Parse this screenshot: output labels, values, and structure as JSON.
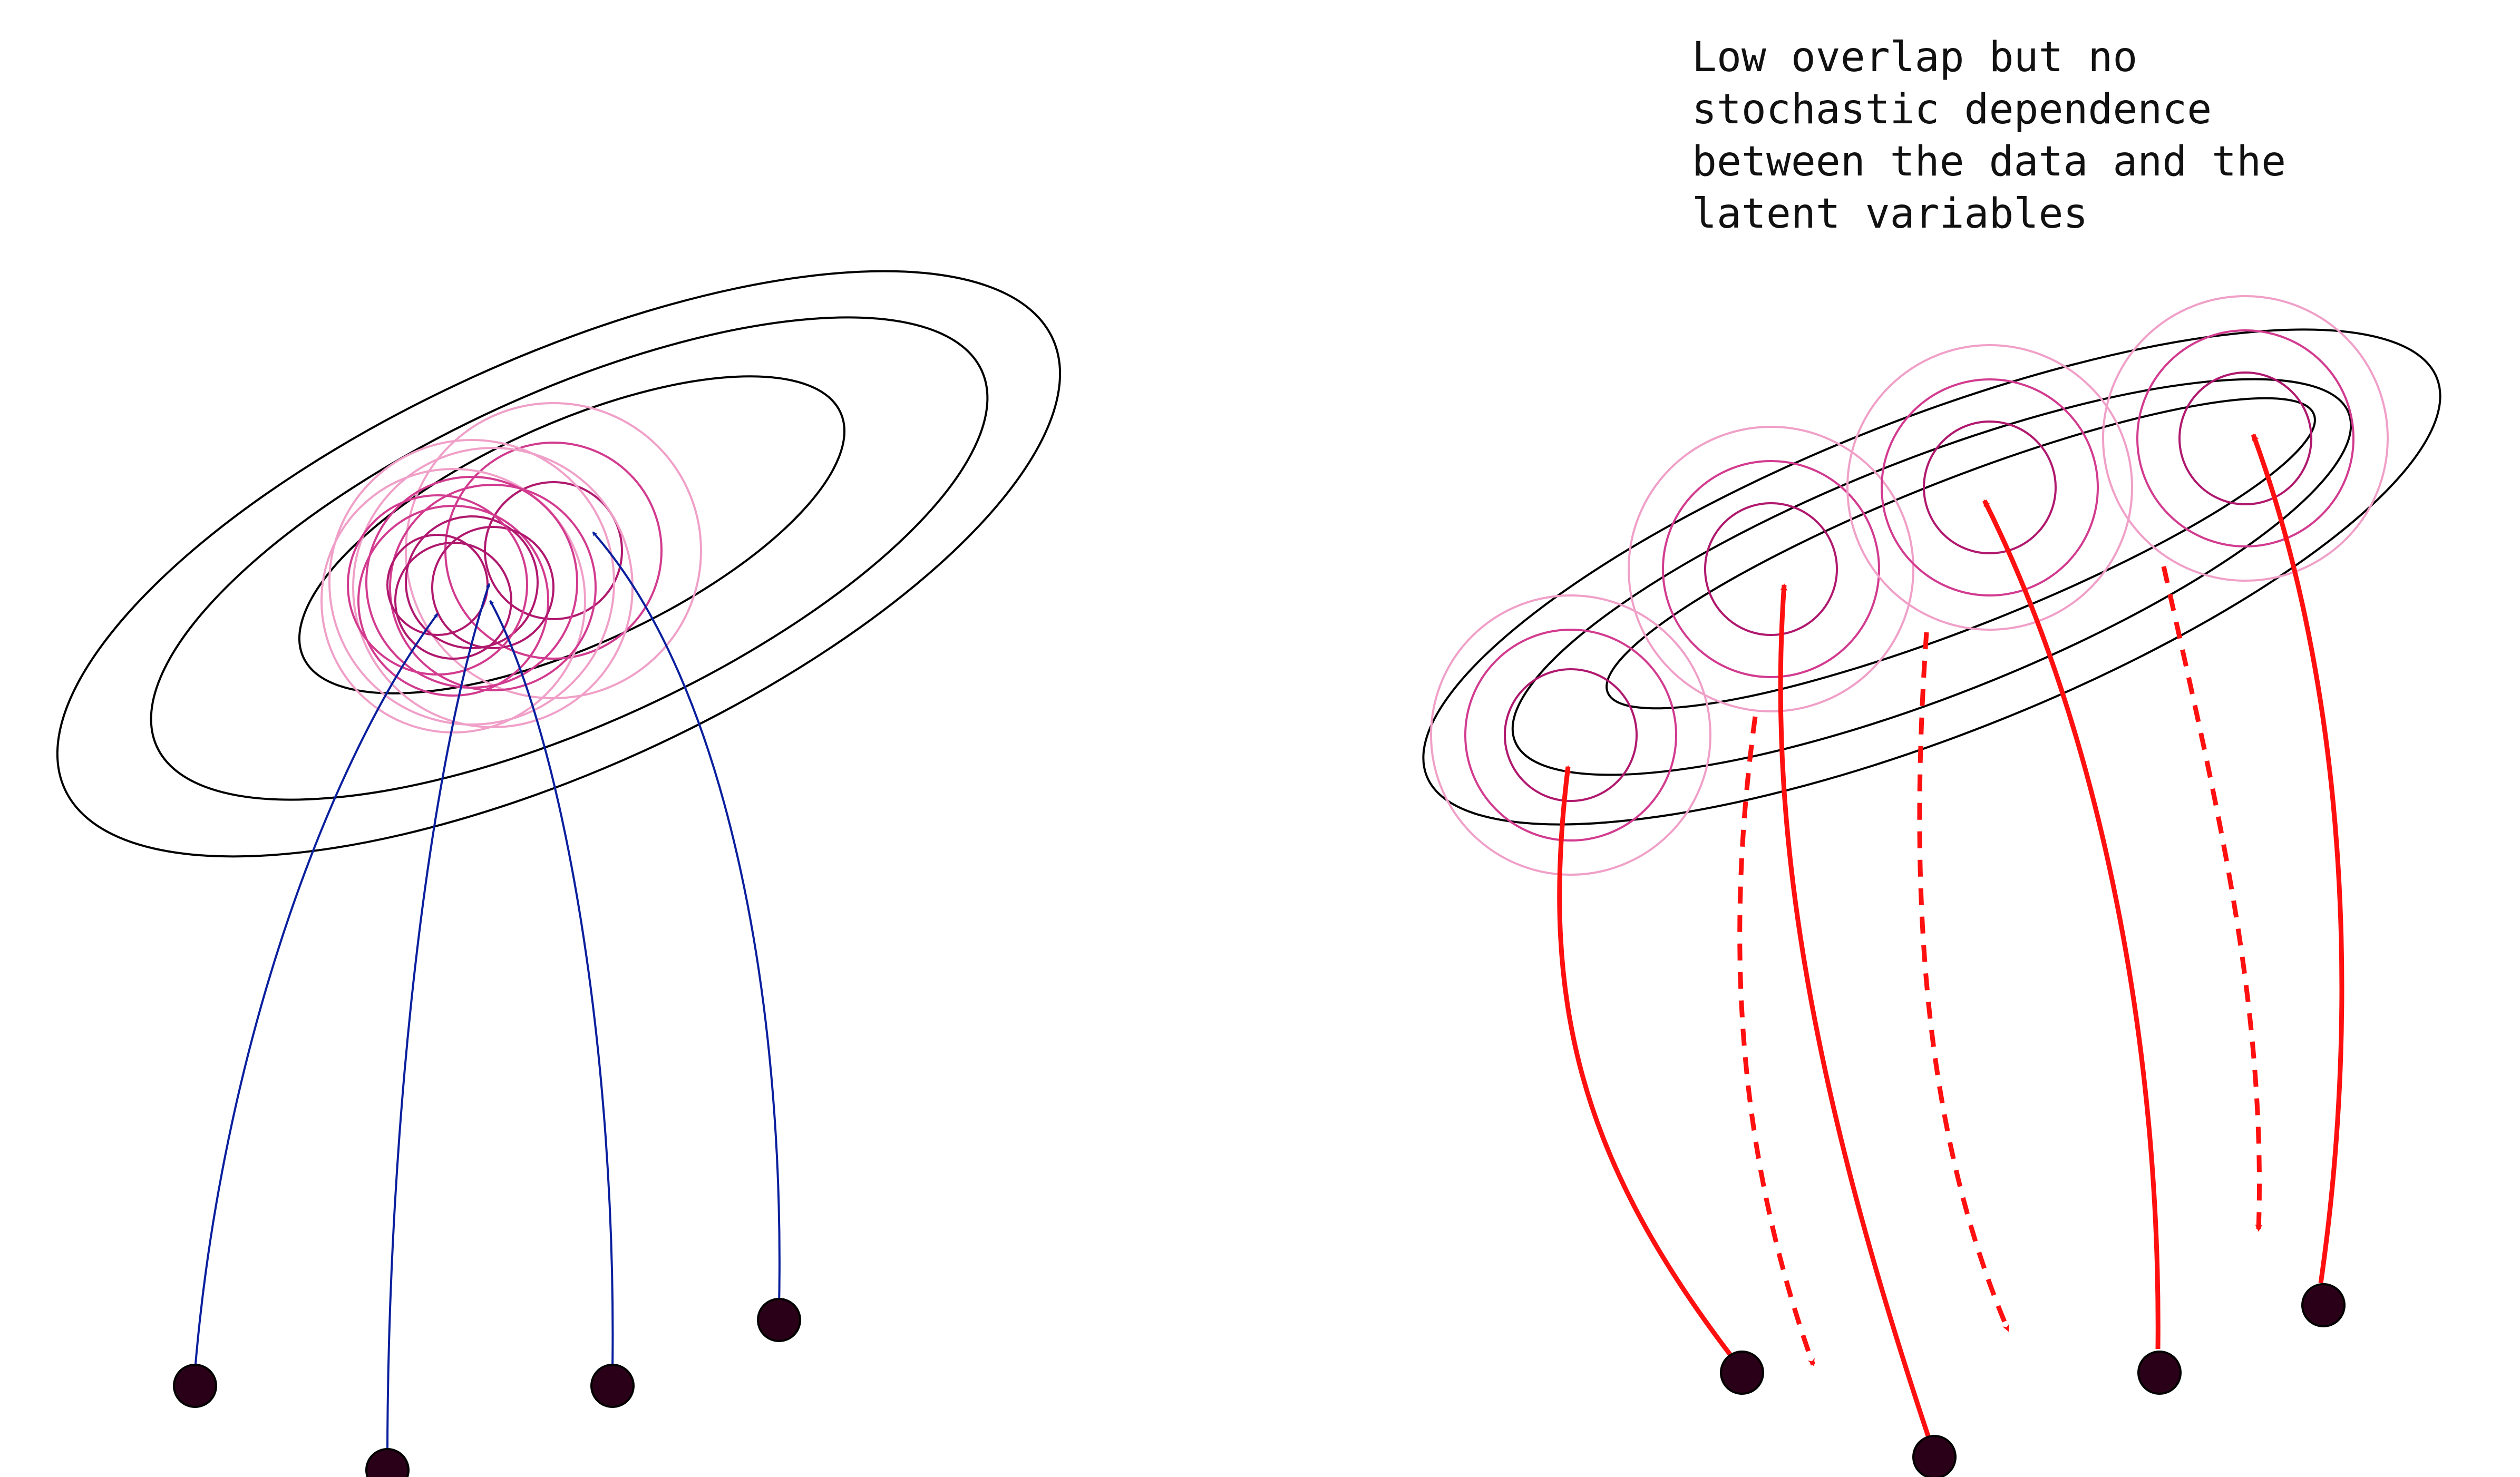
{
  "annotation": {
    "lines": [
      "Low overlap but no",
      "stochastic dependence",
      "between the data and the",
      "latent variables"
    ]
  },
  "colors": {
    "background": "#ffffff",
    "prior_ellipse": "#000000",
    "posterior_inner": "#b0186e",
    "posterior_mid": "#d23b8f",
    "posterior_outer": "#f0a0c8",
    "left_arrow": "#0a1f9e",
    "right_arrow": "#ff1010",
    "data_point_fill": "#2a0018",
    "data_point_stroke": "#000000",
    "text": "#111111"
  },
  "panels": {
    "left": {
      "description_icons": [
        "data-point-icon",
        "encoder-arrow-icon",
        "posterior-contour-icon",
        "prior-ellipse-icon"
      ]
    },
    "right": {
      "description_icons": [
        "data-point-icon",
        "encoder-arrow-icon",
        "decoder-dashed-arrow-icon",
        "posterior-contour-icon",
        "prior-ellipse-icon"
      ]
    }
  }
}
